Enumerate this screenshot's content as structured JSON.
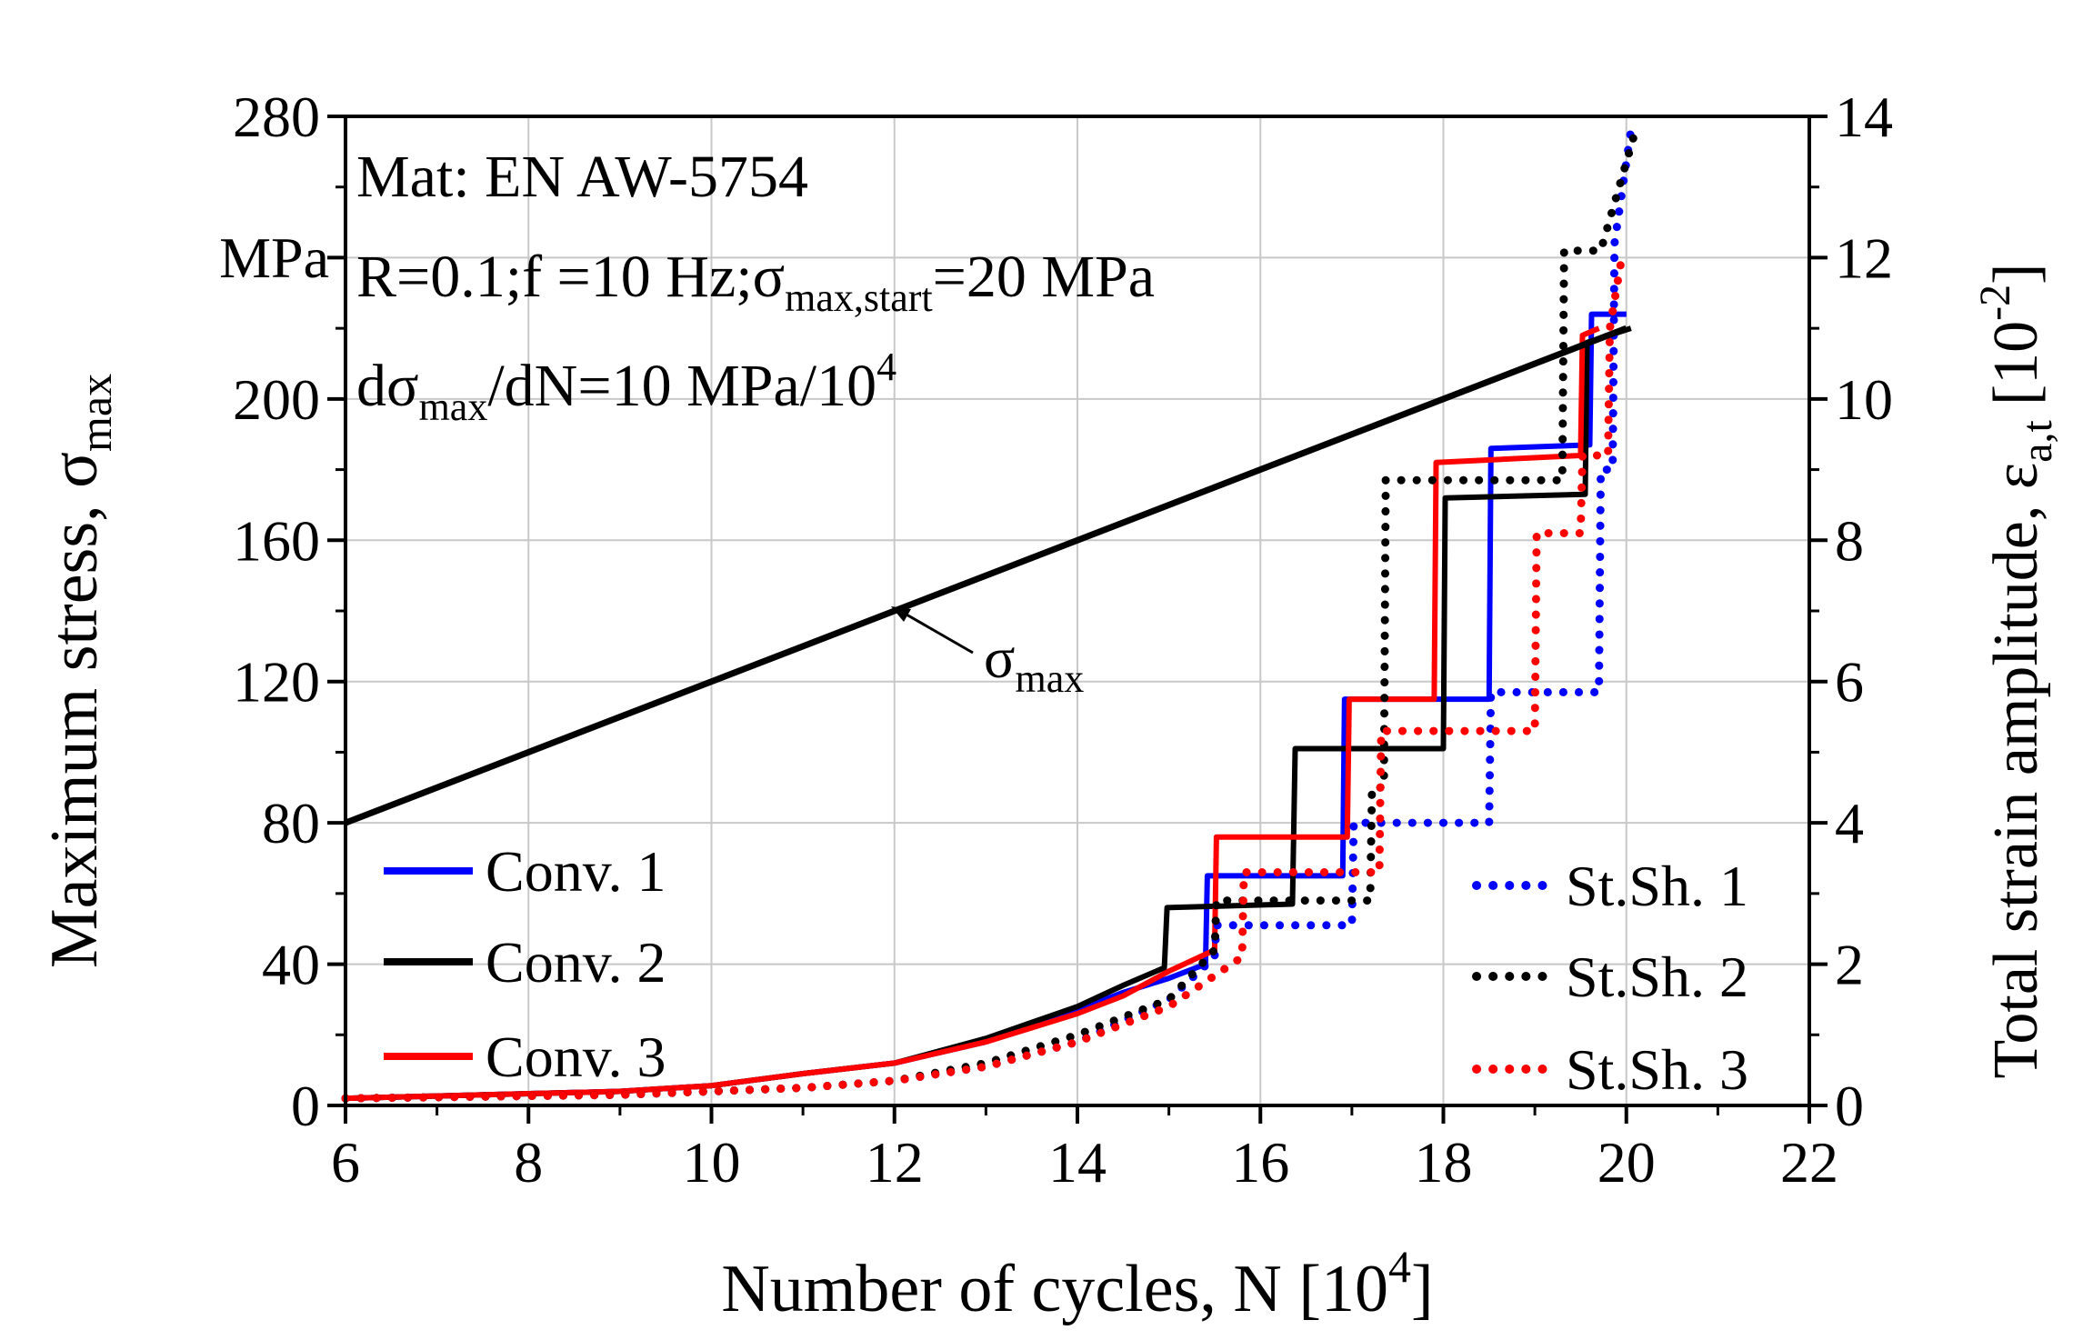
{
  "chart_data": {
    "type": "line",
    "xlabel": "Number of cycles, N [10",
    "xlabel_sup": "4",
    "xlabel_end": "]",
    "ylabel_left": "Maximum stress, σ",
    "ylabel_left_sub": "max",
    "ylabel_left_unit": "MPa",
    "ylabel_right": "Total strain amplitude, ε",
    "ylabel_right_sub": "a,t",
    "ylabel_right_unit": "[10",
    "ylabel_right_unit_sup": "-2",
    "ylabel_right_unit_end": "]",
    "xlim": [
      6,
      22
    ],
    "ylim_left": [
      0,
      280
    ],
    "ylim_right": [
      0,
      14
    ],
    "x_ticks": [
      "6",
      "8",
      "10",
      "12",
      "14",
      "16",
      "18",
      "20",
      "22"
    ],
    "y_ticks_left": [
      "0",
      "40",
      "80",
      "120",
      "160",
      "200",
      "280"
    ],
    "y_ticks_right": [
      "0",
      "2",
      "4",
      "6",
      "8",
      "10",
      "12",
      "14"
    ],
    "grid": "on",
    "annotation": {
      "line1": "Mat: EN AW-5754",
      "line2_a": "R=0.1;f =10 Hz;σ",
      "line2_sub": "max,start",
      "line2_b": "=20 MPa",
      "line3_a": "dσ",
      "line3_sub": "max",
      "line3_b": "/dN=10 MPa/10",
      "line3_sup": "4"
    },
    "arrow_label": "σ",
    "arrow_label_sub": "max",
    "legend_left": [
      "Conv. 1",
      "Conv. 2",
      "Conv. 3"
    ],
    "legend_right": [
      "St.Sh. 1",
      "St.Sh. 2",
      "St.Sh. 3"
    ],
    "colors": {
      "conv1": "#0000ff",
      "conv2": "#000000",
      "conv3": "#ff0000"
    },
    "sigma_max": {
      "axis": "left",
      "x": [
        6,
        20
      ],
      "y": [
        80,
        220
      ]
    },
    "series": [
      {
        "name": "Conv. 1",
        "color": "#0000ff",
        "style": "solid",
        "axis": "right",
        "x": [
          6,
          9,
          10,
          11,
          12,
          13,
          14,
          14.5,
          15,
          15.4,
          15.42,
          16.9,
          16.92,
          18.5,
          18.52,
          19.6,
          19.62,
          20.0
        ],
        "y": [
          0.1,
          0.2,
          0.28,
          0.45,
          0.6,
          0.9,
          1.35,
          1.6,
          1.8,
          2.0,
          3.25,
          3.25,
          5.75,
          5.75,
          9.3,
          9.35,
          11.2,
          11.2
        ]
      },
      {
        "name": "Conv. 2",
        "color": "#000000",
        "style": "solid",
        "axis": "right",
        "x": [
          6,
          9,
          10,
          11,
          12,
          13,
          14,
          14.5,
          14.95,
          14.98,
          16.35,
          16.38,
          18.0,
          18.02,
          19.55,
          19.57,
          20.05
        ],
        "y": [
          0.1,
          0.2,
          0.28,
          0.45,
          0.6,
          0.95,
          1.4,
          1.7,
          1.95,
          2.8,
          2.85,
          5.05,
          5.05,
          8.6,
          8.65,
          10.8,
          11.0
        ]
      },
      {
        "name": "Conv. 3",
        "color": "#ff0000",
        "style": "solid",
        "axis": "right",
        "x": [
          6,
          9,
          10,
          11,
          12,
          13,
          14,
          14.5,
          15,
          15.5,
          15.52,
          16.95,
          16.97,
          17.9,
          17.92,
          19.5,
          19.52,
          19.7
        ],
        "y": [
          0.1,
          0.2,
          0.28,
          0.45,
          0.6,
          0.9,
          1.3,
          1.55,
          1.9,
          2.2,
          3.8,
          3.8,
          5.75,
          5.75,
          9.1,
          9.2,
          10.9,
          11.0
        ]
      },
      {
        "name": "St.Sh. 1",
        "color": "#0000ff",
        "style": "dotted",
        "axis": "right",
        "x": [
          6,
          9,
          10,
          11,
          12,
          13,
          14,
          15,
          15.5,
          15.52,
          17.0,
          17.02,
          18.5,
          18.52,
          19.7,
          19.72,
          19.85,
          19.87,
          20.05
        ],
        "y": [
          0.1,
          0.15,
          0.2,
          0.25,
          0.35,
          0.55,
          0.9,
          1.5,
          2.1,
          2.55,
          2.55,
          4.0,
          4.0,
          5.85,
          5.85,
          9.0,
          9.0,
          12.2,
          13.8
        ]
      },
      {
        "name": "St.Sh. 2",
        "color": "#000000",
        "style": "dotted",
        "axis": "right",
        "x": [
          6,
          9,
          10,
          11,
          12,
          13,
          14,
          15,
          15.5,
          15.52,
          17.2,
          17.22,
          17.35,
          17.37,
          19.3,
          19.32,
          19.7,
          19.72,
          20.1
        ],
        "y": [
          0.1,
          0.15,
          0.2,
          0.25,
          0.35,
          0.6,
          1.0,
          1.5,
          2.2,
          2.9,
          2.9,
          4.5,
          4.5,
          8.85,
          8.85,
          12.1,
          12.1,
          12.1,
          13.8
        ]
      },
      {
        "name": "St.Sh. 3",
        "color": "#ff0000",
        "style": "dotted",
        "axis": "right",
        "x": [
          6,
          9,
          10,
          11,
          12,
          13,
          14,
          15,
          15.8,
          15.82,
          17.3,
          17.32,
          19.0,
          19.02,
          19.5,
          19.52,
          19.8,
          19.82,
          19.95
        ],
        "y": [
          0.1,
          0.15,
          0.2,
          0.25,
          0.35,
          0.55,
          0.9,
          1.4,
          2.1,
          3.3,
          3.3,
          5.3,
          5.3,
          8.1,
          8.1,
          9.2,
          9.2,
          11.0,
          12.0
        ]
      }
    ]
  }
}
